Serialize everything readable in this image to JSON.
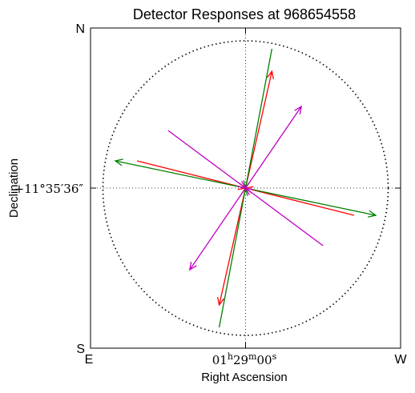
{
  "chart_data": {
    "type": "vector-field",
    "title": "Detector Responses at 968654558",
    "xlabel": "Right Ascension",
    "ylabel": "Declination",
    "corner_labels": {
      "top_left": "N",
      "bottom_left": "S",
      "left_bottom": "E",
      "right_bottom": "W"
    },
    "x_tick": {
      "main": "01",
      "h_sup": "h",
      "mid": "29",
      "m_sup": "m",
      "end": "00",
      "s_sup": "s"
    },
    "y_tick": "+11°35′36″",
    "xlim": [
      -1.0,
      1.0
    ],
    "ylim": [
      -1.0,
      1.0
    ],
    "circle_radius": 0.92,
    "series": [
      {
        "color": "#ff0000",
        "vectors": [
          {
            "tail": [
              0.0,
              0.0
            ],
            "head": [
              0.17,
              0.73
            ]
          },
          {
            "tail": [
              0.0,
              0.0
            ],
            "head": [
              -0.17,
              -0.73
            ]
          },
          {
            "tail": [
              0.7,
              -0.17
            ],
            "head": [
              0.0,
              0.0
            ]
          },
          {
            "tail": [
              -0.7,
              0.17
            ],
            "head": [
              0.0,
              0.0
            ]
          }
        ]
      },
      {
        "color": "#008000",
        "vectors": [
          {
            "tail": [
              0.0,
              0.0
            ],
            "head": [
              0.84,
              -0.17
            ]
          },
          {
            "tail": [
              0.0,
              0.0
            ],
            "head": [
              -0.84,
              0.17
            ]
          },
          {
            "tail": [
              0.17,
              0.87
            ],
            "head": [
              0.0,
              0.0
            ]
          },
          {
            "tail": [
              -0.17,
              -0.87
            ],
            "head": [
              0.0,
              0.0
            ]
          }
        ]
      },
      {
        "color": "#c000c0",
        "vectors": [
          {
            "tail": [
              0.0,
              0.0
            ],
            "head": [
              0.36,
              0.51
            ]
          },
          {
            "tail": [
              0.0,
              0.0
            ],
            "head": [
              -0.36,
              -0.51
            ]
          },
          {
            "tail": [
              0.5,
              -0.36
            ],
            "head": [
              0.0,
              0.0
            ]
          },
          {
            "tail": [
              -0.5,
              0.36
            ],
            "head": [
              0.0,
              0.0
            ]
          }
        ]
      }
    ]
  }
}
